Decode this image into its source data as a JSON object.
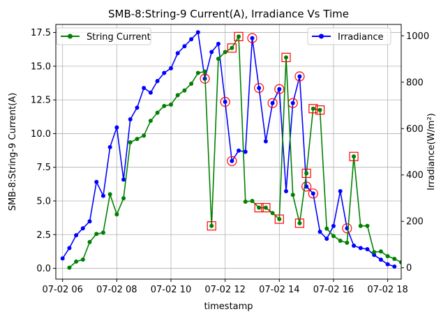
{
  "chart_data": {
    "type": "line",
    "title": "SMB-8:String-9 Current(A), Irradiance Vs Time",
    "xlabel": "timestamp",
    "ylabel_left": "SMB-8:String-9 Current(A)",
    "ylabel_right": "Irradiance(W/m²)",
    "x_range": [
      "2024-07-02T05:45",
      "2024-07-02T18:30"
    ],
    "xtick_hours": [
      6,
      8,
      10,
      12,
      14,
      16,
      18
    ],
    "xtick_labels": [
      "07-02 06",
      "07-02 08",
      "07-02 10",
      "07-02 12",
      "07-02 14",
      "07-02 16",
      "07-02 18"
    ],
    "ylim_left": [
      -0.8,
      18.1
    ],
    "yticks_left": [
      0.0,
      2.5,
      5.0,
      7.5,
      10.0,
      12.5,
      15.0,
      17.5
    ],
    "ytick_labels_left": [
      "0.0",
      "2.5",
      "5.0",
      "7.5",
      "10.0",
      "12.5",
      "15.0",
      "17.5"
    ],
    "ylim_right": [
      -49,
      1049
    ],
    "yticks_right": [
      0,
      200,
      400,
      600,
      800,
      1000
    ],
    "ytick_labels_right": [
      "0",
      "200",
      "400",
      "600",
      "800",
      "1000"
    ],
    "grid": true,
    "legend_left_position": "upper-left",
    "legend_right_position": "upper-right",
    "series": [
      {
        "name": "String Current",
        "color": "#008000",
        "axis": "left",
        "points": [
          [
            "06:15",
            0.05
          ],
          [
            "06:30",
            0.5
          ],
          [
            "06:45",
            0.65
          ],
          [
            "07:00",
            1.95
          ],
          [
            "07:15",
            2.55
          ],
          [
            "07:30",
            2.65
          ],
          [
            "07:45",
            5.5
          ],
          [
            "08:00",
            4.0
          ],
          [
            "08:15",
            5.2
          ],
          [
            "08:30",
            9.35
          ],
          [
            "08:45",
            9.6
          ],
          [
            "09:00",
            9.85
          ],
          [
            "09:15",
            10.95
          ],
          [
            "09:30",
            11.55
          ],
          [
            "09:45",
            12.05
          ],
          [
            "10:00",
            12.15
          ],
          [
            "10:15",
            12.85
          ],
          [
            "10:30",
            13.2
          ],
          [
            "10:45",
            13.7
          ],
          [
            "11:00",
            14.5
          ],
          [
            "11:15",
            14.6
          ],
          [
            "11:30",
            3.15
          ],
          [
            "11:45",
            15.55
          ],
          [
            "12:00",
            16.05
          ],
          [
            "12:15",
            16.35
          ],
          [
            "12:30",
            17.2
          ],
          [
            "12:45",
            4.95
          ],
          [
            "13:00",
            5.0
          ],
          [
            "13:15",
            4.5
          ],
          [
            "13:30",
            4.5
          ],
          [
            "13:45",
            4.1
          ],
          [
            "14:00",
            3.65
          ],
          [
            "14:15",
            15.65
          ],
          [
            "14:30",
            5.45
          ],
          [
            "14:45",
            3.35
          ],
          [
            "15:00",
            7.05
          ],
          [
            "15:15",
            11.85
          ],
          [
            "15:30",
            11.75
          ],
          [
            "15:45",
            2.95
          ],
          [
            "16:00",
            2.4
          ],
          [
            "16:15",
            2.05
          ],
          [
            "16:30",
            1.9
          ],
          [
            "16:45",
            8.3
          ],
          [
            "17:00",
            3.15
          ],
          [
            "17:15",
            3.15
          ],
          [
            "17:30",
            1.2
          ],
          [
            "17:45",
            1.25
          ],
          [
            "18:00",
            0.9
          ],
          [
            "18:15",
            0.7
          ],
          [
            "18:30",
            0.45
          ]
        ],
        "anomalies": [
          "11:30",
          "12:15",
          "12:30",
          "13:15",
          "13:30",
          "14:00",
          "14:15",
          "14:45",
          "15:00",
          "15:15",
          "15:30",
          "16:45"
        ],
        "anomaly_marker": "red-square"
      },
      {
        "name": "Irradiance",
        "color": "#0000ff",
        "axis": "right",
        "points": [
          [
            "06:00",
            40
          ],
          [
            "06:15",
            85
          ],
          [
            "06:30",
            140
          ],
          [
            "06:45",
            170
          ],
          [
            "07:00",
            200
          ],
          [
            "07:15",
            370
          ],
          [
            "07:30",
            310
          ],
          [
            "07:45",
            520
          ],
          [
            "08:00",
            605
          ],
          [
            "08:15",
            380
          ],
          [
            "08:30",
            640
          ],
          [
            "08:45",
            690
          ],
          [
            "09:00",
            775
          ],
          [
            "09:15",
            755
          ],
          [
            "09:30",
            805
          ],
          [
            "09:45",
            840
          ],
          [
            "10:00",
            860
          ],
          [
            "10:15",
            925
          ],
          [
            "10:30",
            955
          ],
          [
            "10:45",
            985
          ],
          [
            "11:00",
            1015
          ],
          [
            "11:15",
            815
          ],
          [
            "11:30",
            930
          ],
          [
            "11:45",
            965
          ],
          [
            "12:00",
            715
          ],
          [
            "12:15",
            460
          ],
          [
            "12:30",
            505
          ],
          [
            "12:45",
            500
          ],
          [
            "13:00",
            990
          ],
          [
            "13:15",
            775
          ],
          [
            "13:30",
            545
          ],
          [
            "13:45",
            710
          ],
          [
            "14:00",
            770
          ],
          [
            "14:15",
            330
          ],
          [
            "14:30",
            710
          ],
          [
            "14:45",
            825
          ],
          [
            "15:00",
            350
          ],
          [
            "15:15",
            320
          ],
          [
            "15:30",
            155
          ],
          [
            "15:45",
            125
          ],
          [
            "16:00",
            180
          ],
          [
            "16:15",
            330
          ],
          [
            "16:30",
            170
          ],
          [
            "16:45",
            95
          ],
          [
            "17:00",
            85
          ],
          [
            "17:15",
            80
          ],
          [
            "17:30",
            55
          ],
          [
            "17:45",
            35
          ],
          [
            "18:00",
            15
          ],
          [
            "18:15",
            5
          ]
        ],
        "anomalies": [
          "11:15",
          "12:00",
          "12:15",
          "13:00",
          "13:15",
          "13:45",
          "14:00",
          "14:30",
          "14:45",
          "15:00",
          "15:15",
          "16:30"
        ],
        "anomaly_marker": "red-circle"
      }
    ]
  }
}
